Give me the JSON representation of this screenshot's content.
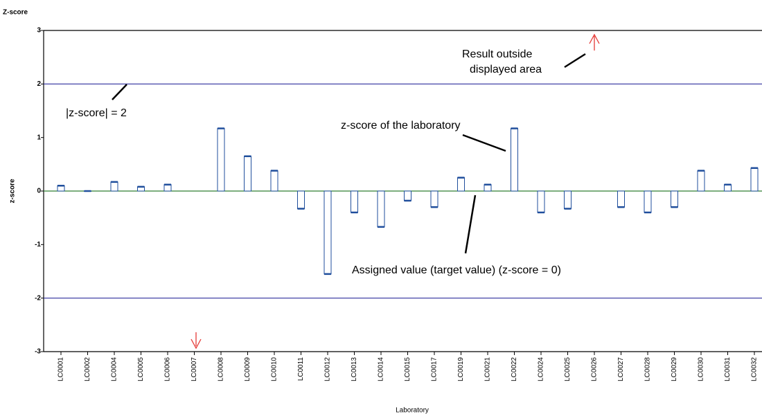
{
  "chart_data": {
    "type": "bar",
    "title": "Z-score",
    "y_label": "z-score",
    "x_label": "Laboratory",
    "categories": [
      "LC0001",
      "LC0002",
      "LC0004",
      "LC0005",
      "LC0006",
      "LC0007",
      "LC0008",
      "LC0009",
      "LC0010",
      "LC0011",
      "LC0012",
      "LC0013",
      "LC0014",
      "LC0015",
      "LC0017",
      "LC0019",
      "LC0021",
      "LC0022",
      "LC0024",
      "LC0025",
      "LC0026",
      "LC0027",
      "LC0028",
      "LC0029",
      "LC0030",
      "LC0031",
      "LC0032"
    ],
    "values": [
      0.1,
      0.0,
      0.17,
      0.08,
      0.12,
      null,
      1.17,
      0.65,
      0.38,
      -0.33,
      -1.55,
      -0.4,
      -0.67,
      -0.18,
      -0.3,
      0.25,
      0.12,
      1.17,
      -0.4,
      -0.33,
      null,
      -0.3,
      -0.4,
      -0.3,
      0.38,
      0.12,
      0.43
    ],
    "color": "#1f4e9c",
    "ylim": [
      -3,
      3
    ],
    "yticks": [
      -3,
      -2,
      -1,
      0,
      1,
      2,
      3
    ],
    "reference_lines": [
      2,
      -2
    ],
    "reference_color": "#2b2b9c",
    "zero_line_color": "#2e7d32",
    "annotations": {
      "outside": [
        "Result outside",
        "displayed area"
      ],
      "limit": "|z-score| = 2",
      "lab": "z-score of the laboratory",
      "assigned": "Assigned value (target value) (z-score = 0)"
    }
  }
}
